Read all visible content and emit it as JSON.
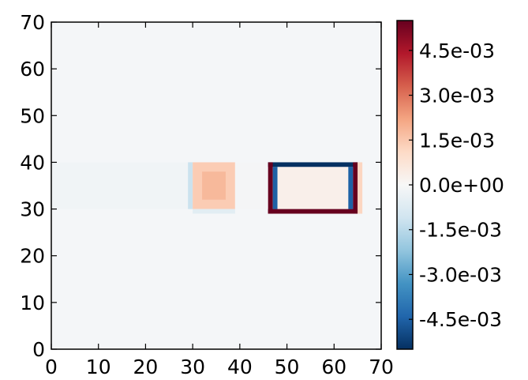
{
  "chart_data": {
    "type": "heatmap",
    "title": "",
    "xlabel": "",
    "ylabel": "",
    "xlim": [
      0,
      70
    ],
    "ylim": [
      0,
      70
    ],
    "grid": false,
    "x_ticks": [
      0,
      10,
      20,
      30,
      40,
      50,
      60,
      70
    ],
    "y_ticks": [
      0,
      10,
      20,
      30,
      40,
      50,
      60,
      70
    ],
    "x_tick_labels": [
      "0",
      "10",
      "20",
      "30",
      "40",
      "50",
      "60",
      "70"
    ],
    "y_tick_labels": [
      "0",
      "10",
      "20",
      "30",
      "40",
      "50",
      "60",
      "70"
    ],
    "colormap": "RdBu_r",
    "color_range": [
      -0.0055,
      0.0055
    ],
    "colorbar": {
      "placement": "right",
      "ticks": [
        0.0045,
        0.003,
        0.0015,
        0.0,
        -0.0015,
        -0.003,
        -0.0045
      ],
      "tick_labels": [
        "4.5e-03",
        "3.0e-03",
        "1.5e-03",
        "0.0e+00",
        "-1.5e-03",
        "-3.0e-03",
        "-4.5e-03"
      ]
    },
    "grid_shape": [
      70,
      70
    ],
    "regions": [
      {
        "region": "left horizontal band",
        "x": [
          0,
          30
        ],
        "y": [
          30,
          40
        ],
        "value": -0.0002
      },
      {
        "region": "left edge of central block",
        "x": [
          29,
          30
        ],
        "y": [
          30,
          40
        ],
        "value": -0.0012
      },
      {
        "region": "central block",
        "x": [
          30,
          39
        ],
        "y": [
          30,
          40
        ],
        "value": 0.0014
      },
      {
        "region": "central block core",
        "x": [
          32,
          37
        ],
        "y": [
          32,
          38
        ],
        "value": 0.0018
      },
      {
        "region": "central block bottom edge",
        "x": [
          30,
          39
        ],
        "y": [
          29,
          30
        ],
        "value": -0.0006
      },
      {
        "region": "gap between blocks",
        "x": [
          39,
          46
        ],
        "y": [
          30,
          40
        ],
        "value": -0.0001
      },
      {
        "region": "rectangle top edge",
        "x": [
          46,
          65
        ],
        "y": [
          39,
          40
        ],
        "value": -0.0055
      },
      {
        "region": "rectangle bottom edge",
        "x": [
          46,
          65
        ],
        "y": [
          29,
          30
        ],
        "value": 0.0055
      },
      {
        "region": "rectangle left edge",
        "x": [
          46,
          47
        ],
        "y": [
          29,
          40
        ],
        "value": 0.0055
      },
      {
        "region": "rectangle right edge",
        "x": [
          64,
          65
        ],
        "y": [
          29,
          40
        ],
        "value": 0.0055
      },
      {
        "region": "rectangle inner left edge",
        "x": [
          47,
          48
        ],
        "y": [
          30,
          39
        ],
        "value": -0.0045
      },
      {
        "region": "rectangle inner right edge",
        "x": [
          63,
          64
        ],
        "y": [
          30,
          39
        ],
        "value": -0.0045
      },
      {
        "region": "rectangle interior",
        "x": [
          48,
          63
        ],
        "y": [
          30,
          39
        ],
        "value": 0.0003
      },
      {
        "region": "rectangle outer halo",
        "x": [
          65,
          66
        ],
        "y": [
          29,
          40
        ],
        "value": 0.0012
      }
    ]
  }
}
